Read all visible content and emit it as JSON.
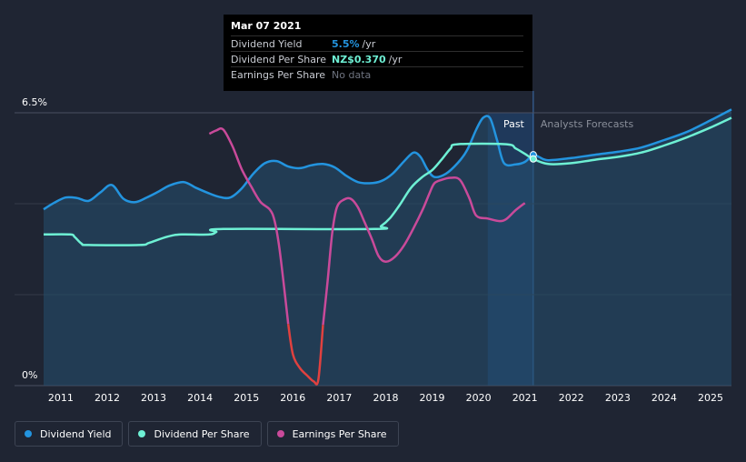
{
  "tooltip": {
    "date": "Mar 07 2021",
    "rows": [
      {
        "label": "Dividend Yield",
        "value": "5.5%",
        "unit": "/yr",
        "color": "#2394df"
      },
      {
        "label": "Dividend Per Share",
        "value": "NZ$0.370",
        "unit": "/yr",
        "color": "#6ef0d4"
      },
      {
        "label": "Earnings Per Share",
        "value": "No data",
        "unit": "",
        "color": "#6f7480"
      }
    ]
  },
  "regions": {
    "past": "Past",
    "forecast": "Analysts Forecasts"
  },
  "legend": [
    {
      "label": "Dividend Yield",
      "color": "#2394df"
    },
    {
      "label": "Dividend Per Share",
      "color": "#6ef0d4"
    },
    {
      "label": "Earnings Per Share",
      "color": "#c94a9a"
    }
  ],
  "chart_data": {
    "type": "line",
    "title": "",
    "xlabel": "",
    "ylabel": "",
    "xlim": [
      2010.63,
      2025.45
    ],
    "ylim": [
      0,
      6.5
    ],
    "y_tick_labels": [
      "6.5%",
      "0%"
    ],
    "x_ticks": [
      "2011",
      "2012",
      "2013",
      "2014",
      "2015",
      "2016",
      "2017",
      "2018",
      "2019",
      "2020",
      "2021",
      "2022",
      "2023",
      "2024",
      "2025"
    ],
    "past_end": 2021.18,
    "highlight_start": 2020.2,
    "hover_x": 2021.18,
    "series": [
      {
        "name": "Dividend Yield",
        "color": "#2394df",
        "points": [
          [
            2010.63,
            4.2
          ],
          [
            2010.85,
            4.35
          ],
          [
            2011.1,
            4.48
          ],
          [
            2011.35,
            4.47
          ],
          [
            2011.6,
            4.4
          ],
          [
            2011.85,
            4.6
          ],
          [
            2012.1,
            4.78
          ],
          [
            2012.35,
            4.45
          ],
          [
            2012.6,
            4.37
          ],
          [
            2012.85,
            4.48
          ],
          [
            2013.1,
            4.62
          ],
          [
            2013.35,
            4.77
          ],
          [
            2013.65,
            4.85
          ],
          [
            2013.9,
            4.72
          ],
          [
            2014.15,
            4.6
          ],
          [
            2014.4,
            4.5
          ],
          [
            2014.65,
            4.48
          ],
          [
            2014.9,
            4.7
          ],
          [
            2015.15,
            5.05
          ],
          [
            2015.4,
            5.3
          ],
          [
            2015.65,
            5.35
          ],
          [
            2015.9,
            5.22
          ],
          [
            2016.15,
            5.18
          ],
          [
            2016.4,
            5.25
          ],
          [
            2016.65,
            5.28
          ],
          [
            2016.9,
            5.2
          ],
          [
            2017.15,
            5.0
          ],
          [
            2017.4,
            4.85
          ],
          [
            2017.65,
            4.82
          ],
          [
            2017.9,
            4.87
          ],
          [
            2018.15,
            5.05
          ],
          [
            2018.4,
            5.35
          ],
          [
            2018.6,
            5.55
          ],
          [
            2018.75,
            5.45
          ],
          [
            2018.9,
            5.15
          ],
          [
            2019.05,
            4.97
          ],
          [
            2019.3,
            5.05
          ],
          [
            2019.55,
            5.3
          ],
          [
            2019.75,
            5.6
          ],
          [
            2019.95,
            6.1
          ],
          [
            2020.1,
            6.38
          ],
          [
            2020.25,
            6.37
          ],
          [
            2020.4,
            5.85
          ],
          [
            2020.55,
            5.3
          ],
          [
            2020.8,
            5.27
          ],
          [
            2021.0,
            5.33
          ],
          [
            2021.18,
            5.5
          ],
          [
            2021.3,
            5.45
          ],
          [
            2021.5,
            5.37
          ],
          [
            2022.0,
            5.42
          ],
          [
            2022.5,
            5.5
          ],
          [
            2023.0,
            5.57
          ],
          [
            2023.5,
            5.67
          ],
          [
            2024.0,
            5.85
          ],
          [
            2024.5,
            6.05
          ],
          [
            2025.0,
            6.32
          ],
          [
            2025.45,
            6.58
          ]
        ]
      },
      {
        "name": "Dividend Per Share",
        "color": "#6ef0d4",
        "points": [
          [
            2010.63,
            3.6
          ],
          [
            2011.2,
            3.6
          ],
          [
            2011.3,
            3.54
          ],
          [
            2011.45,
            3.38
          ],
          [
            2011.6,
            3.35
          ],
          [
            2012.7,
            3.35
          ],
          [
            2012.9,
            3.4
          ],
          [
            2013.3,
            3.55
          ],
          [
            2013.6,
            3.6
          ],
          [
            2014.2,
            3.6
          ],
          [
            2014.35,
            3.66
          ],
          [
            2014.5,
            3.73
          ],
          [
            2017.75,
            3.73
          ],
          [
            2017.9,
            3.8
          ],
          [
            2018.1,
            4.0
          ],
          [
            2018.3,
            4.3
          ],
          [
            2018.55,
            4.72
          ],
          [
            2018.8,
            4.98
          ],
          [
            2019.0,
            5.13
          ],
          [
            2019.2,
            5.38
          ],
          [
            2019.4,
            5.65
          ],
          [
            2019.55,
            5.75
          ],
          [
            2020.6,
            5.75
          ],
          [
            2020.8,
            5.65
          ],
          [
            2021.0,
            5.52
          ],
          [
            2021.18,
            5.4
          ],
          [
            2021.5,
            5.28
          ],
          [
            2022.0,
            5.3
          ],
          [
            2022.5,
            5.38
          ],
          [
            2023.0,
            5.45
          ],
          [
            2023.5,
            5.55
          ],
          [
            2024.0,
            5.72
          ],
          [
            2024.5,
            5.92
          ],
          [
            2025.0,
            6.15
          ],
          [
            2025.45,
            6.38
          ]
        ]
      },
      {
        "name": "Earnings Per Share",
        "color": "#c94a9a",
        "negative_color": "#e0413f",
        "points": [
          [
            2014.2,
            6.0
          ],
          [
            2014.35,
            6.08
          ],
          [
            2014.5,
            6.1
          ],
          [
            2014.7,
            5.7
          ],
          [
            2014.9,
            5.15
          ],
          [
            2015.1,
            4.75
          ],
          [
            2015.3,
            4.38
          ],
          [
            2015.5,
            4.2
          ],
          [
            2015.6,
            3.95
          ],
          [
            2015.7,
            3.35
          ],
          [
            2015.8,
            2.45
          ],
          [
            2015.9,
            1.47
          ],
          [
            2016.0,
            0.75
          ],
          [
            2016.15,
            0.42
          ],
          [
            2016.3,
            0.25
          ],
          [
            2016.45,
            0.1
          ],
          [
            2016.55,
            0.15
          ],
          [
            2016.65,
            1.45
          ],
          [
            2016.75,
            2.5
          ],
          [
            2016.85,
            3.65
          ],
          [
            2016.95,
            4.25
          ],
          [
            2017.1,
            4.43
          ],
          [
            2017.25,
            4.45
          ],
          [
            2017.4,
            4.25
          ],
          [
            2017.55,
            3.88
          ],
          [
            2017.7,
            3.5
          ],
          [
            2017.85,
            3.08
          ],
          [
            2018.0,
            2.95
          ],
          [
            2018.2,
            3.07
          ],
          [
            2018.4,
            3.35
          ],
          [
            2018.6,
            3.75
          ],
          [
            2018.8,
            4.2
          ],
          [
            2018.95,
            4.6
          ],
          [
            2019.05,
            4.82
          ],
          [
            2019.2,
            4.9
          ],
          [
            2019.4,
            4.95
          ],
          [
            2019.6,
            4.9
          ],
          [
            2019.8,
            4.47
          ],
          [
            2019.95,
            4.05
          ],
          [
            2020.2,
            3.98
          ],
          [
            2020.45,
            3.92
          ],
          [
            2020.6,
            3.97
          ],
          [
            2020.8,
            4.18
          ],
          [
            2021.0,
            4.35
          ]
        ]
      }
    ]
  }
}
